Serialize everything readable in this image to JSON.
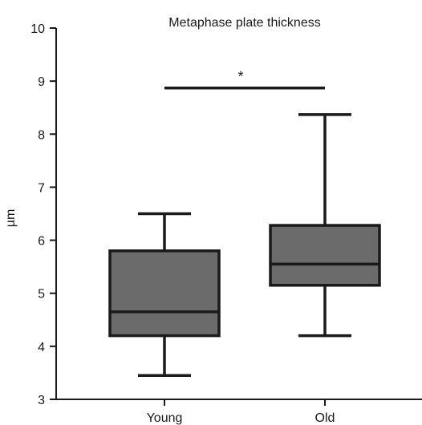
{
  "chart_data": {
    "type": "box",
    "title": "Metaphase plate thickness",
    "ylabel": "µm",
    "xlabel": "",
    "ylim": [
      3,
      10
    ],
    "yticks": [
      3,
      4,
      5,
      6,
      7,
      8,
      9,
      10
    ],
    "categories": [
      "Young",
      "Old"
    ],
    "boxes": [
      {
        "category": "Young",
        "min": 3.45,
        "q1": 4.2,
        "median": 4.65,
        "q3": 5.8,
        "max": 6.5
      },
      {
        "category": "Old",
        "min": 4.2,
        "q1": 5.15,
        "median": 5.55,
        "q3": 6.28,
        "max": 8.37
      }
    ],
    "significance": {
      "label": "*",
      "between": [
        "Young",
        "Old"
      ],
      "y": 8.87
    },
    "colors": {
      "box_fill": "#6b6b6b",
      "line": "#1a1a1a"
    }
  }
}
